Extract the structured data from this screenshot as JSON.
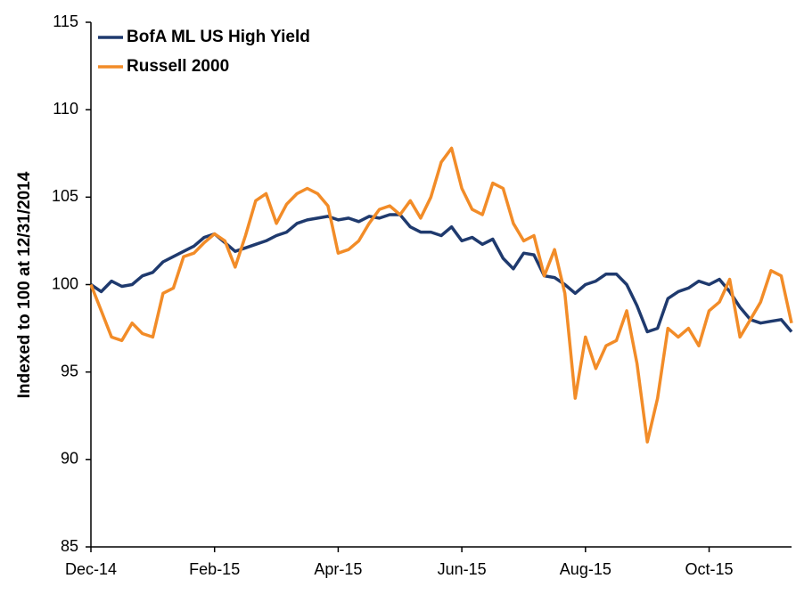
{
  "chart_data": {
    "type": "line",
    "y_label": "Indexed to 100 at 12/31/2014",
    "categories": [
      "Dec-14",
      null,
      null,
      null,
      null,
      null,
      null,
      null,
      null,
      null,
      null,
      null,
      "Feb-15",
      null,
      null,
      null,
      null,
      null,
      null,
      null,
      null,
      null,
      null,
      null,
      "Apr-15",
      null,
      null,
      null,
      null,
      null,
      null,
      null,
      null,
      null,
      null,
      null,
      "Jun-15",
      null,
      null,
      null,
      null,
      null,
      null,
      null,
      null,
      null,
      null,
      null,
      "Aug-15",
      null,
      null,
      null,
      null,
      null,
      null,
      null,
      null,
      null,
      null,
      null,
      "Oct-15",
      null,
      null,
      null,
      null,
      null,
      null,
      null,
      null
    ],
    "series": [
      {
        "name": "BofA ML US High Yield",
        "color": "#1f3a6e",
        "values": [
          100,
          99.6,
          100.2,
          99.9,
          100.0,
          100.5,
          100.7,
          101.3,
          101.6,
          101.9,
          102.2,
          102.7,
          102.9,
          102.4,
          101.9,
          102.1,
          102.3,
          102.5,
          102.8,
          103.0,
          103.5,
          103.7,
          103.8,
          103.9,
          103.7,
          103.8,
          103.6,
          103.9,
          103.8,
          104.0,
          104.0,
          103.3,
          103.0,
          103.0,
          102.8,
          103.3,
          102.5,
          102.7,
          102.3,
          102.6,
          101.5,
          100.9,
          101.8,
          101.7,
          100.5,
          100.4,
          100.0,
          99.5,
          100.0,
          100.2,
          100.6,
          100.6,
          100.0,
          98.8,
          97.3,
          97.5,
          99.2,
          99.6,
          99.8,
          100.2,
          100.0,
          100.3,
          99.6,
          98.7,
          98.0,
          97.8,
          97.9,
          98.0,
          97.3
        ]
      },
      {
        "name": "Russell 2000",
        "color": "#f28c28",
        "values": [
          100,
          98.5,
          97.0,
          96.8,
          97.8,
          97.2,
          97.0,
          99.5,
          99.8,
          101.6,
          101.8,
          102.4,
          102.9,
          102.5,
          101.0,
          102.8,
          104.8,
          105.2,
          103.5,
          104.6,
          105.2,
          105.5,
          105.2,
          104.5,
          101.8,
          102.0,
          102.5,
          103.5,
          104.3,
          104.5,
          104.0,
          104.8,
          103.8,
          105.0,
          107.0,
          107.8,
          105.5,
          104.3,
          104.0,
          105.8,
          105.5,
          103.5,
          102.5,
          102.8,
          100.5,
          102.0,
          99.5,
          93.5,
          97.0,
          95.2,
          96.5,
          96.8,
          98.5,
          95.5,
          91.0,
          93.5,
          97.5,
          97.0,
          97.5,
          96.5,
          98.5,
          99.0,
          100.3,
          97.0,
          98.0,
          99.0,
          100.8,
          100.5,
          97.8
        ]
      }
    ],
    "ylim": [
      85,
      115
    ],
    "yticks": [
      85,
      90,
      95,
      100,
      105,
      110,
      115
    ],
    "grid": false,
    "legend": "upper left"
  }
}
